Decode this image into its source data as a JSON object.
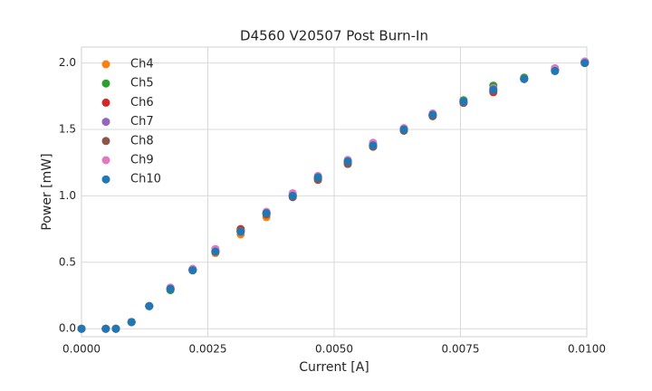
{
  "chart_data": {
    "type": "scatter",
    "title": "D4560 V20507 Post Burn-In",
    "x_label": "Current [A]",
    "y_label": "Power [mW]",
    "x": [
      0,
      0.00048,
      0.00068,
      0.00099,
      0.00134,
      0.00176,
      0.0022,
      0.00265,
      0.00315,
      0.00366,
      0.00418,
      0.00468,
      0.00527,
      0.00577,
      0.00638,
      0.00695,
      0.00756,
      0.00815,
      0.00876,
      0.00937,
      0.00996
    ],
    "series": [
      {
        "name": "Ch4",
        "color": "#ff7f0e",
        "values": [
          0,
          0,
          0,
          0.05,
          0.17,
          0.3,
          0.44,
          0.57,
          0.71,
          0.84,
          1.0,
          1.13,
          1.25,
          1.37,
          1.5,
          1.6,
          1.7,
          1.79,
          1.88,
          1.95,
          2.0
        ]
      },
      {
        "name": "Ch5",
        "color": "#2ca02c",
        "values": [
          0,
          0,
          0,
          0.05,
          0.17,
          0.29,
          0.44,
          0.58,
          0.73,
          0.87,
          1.0,
          1.13,
          1.26,
          1.38,
          1.5,
          1.61,
          1.72,
          1.83,
          1.89,
          1.96,
          2.01
        ]
      },
      {
        "name": "Ch6",
        "color": "#d62728",
        "values": [
          0,
          0,
          0,
          0.05,
          0.17,
          0.3,
          0.45,
          0.58,
          0.75,
          0.87,
          1.01,
          1.14,
          1.26,
          1.38,
          1.5,
          1.61,
          1.71,
          1.78,
          1.88,
          1.95,
          2.01
        ]
      },
      {
        "name": "Ch7",
        "color": "#9467bd",
        "values": [
          0,
          0,
          0,
          0.05,
          0.17,
          0.3,
          0.44,
          0.58,
          0.73,
          0.87,
          1.0,
          1.14,
          1.26,
          1.38,
          1.5,
          1.61,
          1.71,
          1.8,
          1.88,
          1.95,
          2.01
        ]
      },
      {
        "name": "Ch8",
        "color": "#8c564b",
        "values": [
          0,
          0,
          0,
          0.05,
          0.17,
          0.3,
          0.44,
          0.58,
          0.74,
          0.86,
          0.99,
          1.12,
          1.24,
          1.37,
          1.49,
          1.6,
          1.7,
          1.79,
          1.88,
          1.94,
          2.0
        ]
      },
      {
        "name": "Ch9",
        "color": "#e377c2",
        "values": [
          0,
          0,
          0,
          0.05,
          0.17,
          0.31,
          0.45,
          0.6,
          0.73,
          0.88,
          1.02,
          1.15,
          1.27,
          1.4,
          1.51,
          1.62,
          1.71,
          1.81,
          1.88,
          1.96,
          2.01
        ]
      },
      {
        "name": "Ch10",
        "color": "#1f77b4",
        "values": [
          0,
          0,
          0,
          0.05,
          0.17,
          0.3,
          0.44,
          0.58,
          0.73,
          0.87,
          1.0,
          1.14,
          1.26,
          1.38,
          1.5,
          1.61,
          1.71,
          1.8,
          1.88,
          1.94,
          2.0
        ]
      }
    ],
    "xlim": [
      0,
      0.01
    ],
    "ylim": [
      -0.06,
      2.12
    ],
    "xticks": [
      {
        "value": 0,
        "label": "0.0000"
      },
      {
        "value": 0.0025,
        "label": "0.0025"
      },
      {
        "value": 0.005,
        "label": "0.0050"
      },
      {
        "value": 0.0075,
        "label": "0.0075"
      },
      {
        "value": 0.01,
        "label": "0.0100"
      }
    ],
    "yticks": [
      {
        "value": 0,
        "label": "0.0"
      },
      0.5,
      {
        "value": 1,
        "label": "1.0"
      },
      1.5,
      {
        "value": 2,
        "label": "2.0"
      }
    ],
    "grid": true,
    "legend": "upper-left"
  }
}
